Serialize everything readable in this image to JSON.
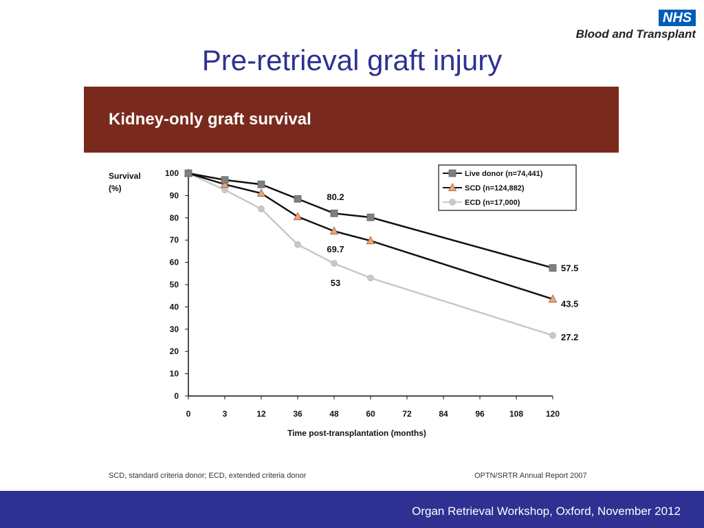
{
  "logo": {
    "badge": "NHS",
    "subtitle": "Blood and Transplant"
  },
  "slide_title": "Pre-retrieval graft injury",
  "figure_header": "Kidney-only graft survival",
  "footnotes": {
    "left": "SCD, standard criteria donor; ECD, extended criteria donor",
    "right": "OPTN/SRTR Annual Report 2007"
  },
  "footer": "Organ Retrieval Workshop, Oxford, November 2012",
  "colors": {
    "title": "#2e3192",
    "footer_bg": "#2e3192",
    "header_bg": "#7a2a1d",
    "live": "#7f7f7f",
    "scd": "#e8a77a",
    "ecd": "#c8c8c8"
  },
  "chart_data": {
    "type": "line",
    "title": "Kidney-only graft survival",
    "ylabel": "Survival (%)",
    "xlabel": "Time post-transplantation (months)",
    "categories": [
      "0",
      "3",
      "12",
      "36",
      "48",
      "60",
      "72",
      "84",
      "96",
      "108",
      "120"
    ],
    "yticks": [
      0,
      10,
      20,
      30,
      40,
      50,
      60,
      70,
      80,
      90,
      100
    ],
    "ylim": [
      0,
      100
    ],
    "legend_position": "top-right",
    "series": [
      {
        "name": "Live donor (n=74,441)",
        "marker": "square",
        "points": [
          {
            "x": "0",
            "y": 100
          },
          {
            "x": "3",
            "y": 97
          },
          {
            "x": "12",
            "y": 95
          },
          {
            "x": "36",
            "y": 88.5
          },
          {
            "x": "48",
            "y": 82
          },
          {
            "x": "60",
            "y": 80.2
          },
          {
            "x": "120",
            "y": 57.5
          }
        ]
      },
      {
        "name": "SCD (n=124,882)",
        "marker": "triangle",
        "points": [
          {
            "x": "0",
            "y": 100
          },
          {
            "x": "3",
            "y": 95
          },
          {
            "x": "12",
            "y": 91
          },
          {
            "x": "36",
            "y": 80.5
          },
          {
            "x": "48",
            "y": 74
          },
          {
            "x": "60",
            "y": 69.7
          },
          {
            "x": "120",
            "y": 43.5
          }
        ]
      },
      {
        "name": "ECD (n=17,000)",
        "marker": "circle",
        "points": [
          {
            "x": "0",
            "y": 100
          },
          {
            "x": "3",
            "y": 92.5
          },
          {
            "x": "12",
            "y": 84
          },
          {
            "x": "36",
            "y": 68
          },
          {
            "x": "48",
            "y": 59.5
          },
          {
            "x": "60",
            "y": 53
          },
          {
            "x": "120",
            "y": 27.2
          }
        ]
      }
    ],
    "annotations": [
      {
        "text": "80.2",
        "x": "48",
        "y": 89.5
      },
      {
        "text": "69.7",
        "x": "48",
        "y": 66
      },
      {
        "text": "53",
        "x": "48",
        "y": 51
      },
      {
        "text": "57.5",
        "x": "120",
        "y": 57.5
      },
      {
        "text": "43.5",
        "x": "120",
        "y": 41.5
      },
      {
        "text": "27.2",
        "x": "120",
        "y": 26.5
      }
    ]
  }
}
